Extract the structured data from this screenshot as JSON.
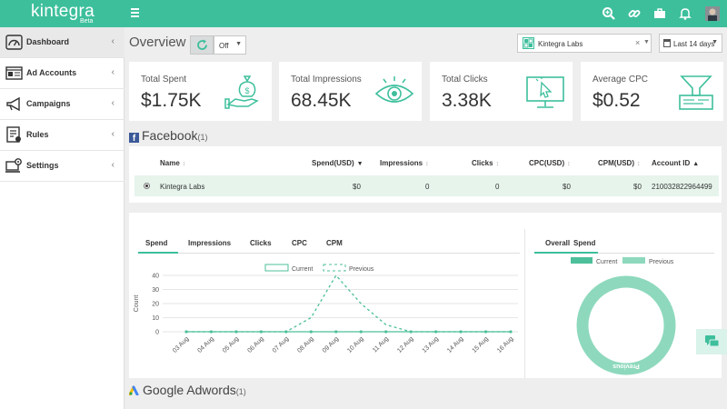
{
  "topbar": {
    "logo": "kintegra",
    "beta": "Beta",
    "icons": [
      "search-plus-icon",
      "link-icon",
      "briefcase-icon",
      "bell-icon",
      "user-avatar"
    ]
  },
  "sidebar": {
    "items": [
      {
        "label": "Dashboard",
        "icon": "dashboard-icon",
        "active": true
      },
      {
        "label": "Ad Accounts",
        "icon": "ad-accounts-icon",
        "active": false
      },
      {
        "label": "Campaigns",
        "icon": "megaphone-icon",
        "active": false
      },
      {
        "label": "Rules",
        "icon": "rules-icon",
        "active": false
      },
      {
        "label": "Settings",
        "icon": "settings-icon",
        "active": false
      }
    ]
  },
  "header": {
    "title": "Overview",
    "refresh_select": "Off",
    "account": "Kintegra Labs",
    "date_range": "Last 14 days"
  },
  "stats": [
    {
      "title": "Total Spent",
      "value": "$1.75K",
      "icon": "money-hand-icon"
    },
    {
      "title": "Total Impressions",
      "value": "68.45K",
      "icon": "eye-icon"
    },
    {
      "title": "Total Clicks",
      "value": "3.38K",
      "icon": "monitor-click-icon"
    },
    {
      "title": "Average CPC",
      "value": "$0.52",
      "icon": "funnel-icon"
    }
  ],
  "facebook": {
    "title": "Facebook",
    "count": "(1)",
    "columns": [
      "Name",
      "Spend(USD)",
      "Impressions",
      "Clicks",
      "CPC(USD)",
      "CPM(USD)",
      "Account ID"
    ],
    "rows": [
      [
        "Kintegra Labs",
        "$0",
        "0",
        "0",
        "$0",
        "$0",
        "210032822964499"
      ]
    ]
  },
  "charts": {
    "tabs": [
      "Spend",
      "Impressions",
      "Clicks",
      "CPC",
      "CPM"
    ],
    "right_tabs": [
      "Overall",
      "Spend"
    ]
  },
  "google": {
    "title": "Google Adwords",
    "count": "(1)"
  },
  "colors": {
    "brand": "#3dbf9c",
    "current": "#4dbf9a",
    "previous": "#8ed9bd"
  },
  "chart_data": [
    {
      "type": "line",
      "legend": [
        "Current",
        "Previous"
      ],
      "ylabel": "Count",
      "ylim": [
        0,
        40
      ],
      "yticks": [
        0,
        10,
        20,
        30,
        40
      ],
      "x": [
        "03 Aug",
        "04 Aug",
        "05 Aug",
        "06 Aug",
        "07 Aug",
        "08 Aug",
        "09 Aug",
        "10 Aug",
        "11 Aug",
        "12 Aug",
        "13 Aug",
        "14 Aug",
        "15 Aug",
        "16 Aug"
      ],
      "series": [
        {
          "name": "Current",
          "values": [
            0,
            0,
            0,
            0,
            0,
            0,
            0,
            0,
            0,
            0,
            0,
            0,
            0,
            0
          ]
        },
        {
          "name": "Previous",
          "values": [
            0,
            0,
            0,
            0,
            0,
            10,
            40,
            20,
            5,
            0,
            0,
            0,
            0,
            0
          ]
        }
      ]
    },
    {
      "type": "pie",
      "legend": [
        "Current",
        "Previous"
      ],
      "slices": [
        {
          "name": "Current",
          "value": 0
        },
        {
          "name": "Previous",
          "value": 1
        }
      ],
      "label": "Previous"
    }
  ]
}
